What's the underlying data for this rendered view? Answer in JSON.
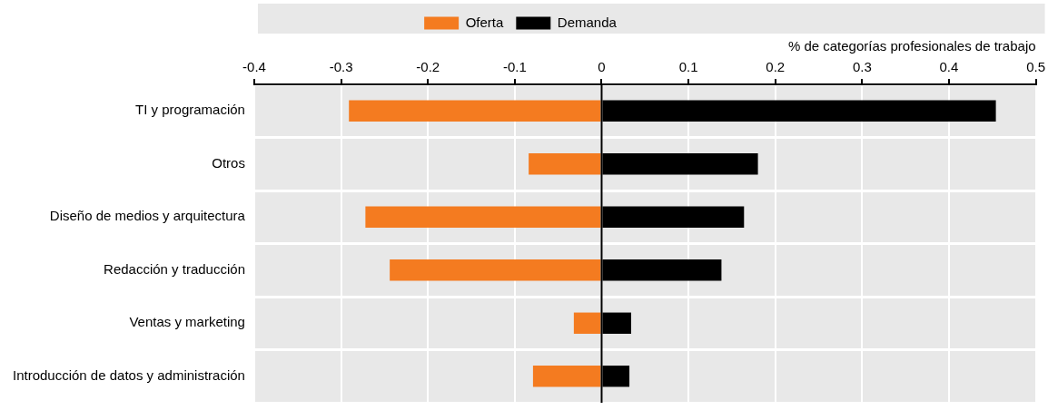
{
  "chart_data": {
    "type": "bar",
    "orientation": "horizontal",
    "stacked": true,
    "xlabel": "% de categorías profesionales de trabajo",
    "categories": [
      "TI y programación",
      "Otros",
      "Diseño de medios y arquitectura",
      "Redacción y traducción",
      "Ventas y marketing",
      "Introducción de datos y administración"
    ],
    "series": [
      {
        "name": "Oferta",
        "color": "#f47b20",
        "values": [
          -0.291,
          -0.084,
          -0.272,
          -0.244,
          -0.032,
          -0.079
        ]
      },
      {
        "name": "Demanda",
        "color": "#000000",
        "values": [
          0.454,
          0.18,
          0.164,
          0.138,
          0.034,
          0.032
        ]
      }
    ],
    "xlim": [
      -0.4,
      0.5
    ],
    "xticks": [
      -0.4,
      -0.3,
      -0.2,
      -0.1,
      0,
      0.1,
      0.2,
      0.3,
      0.4,
      0.5
    ],
    "grid": true,
    "legend": "top"
  }
}
